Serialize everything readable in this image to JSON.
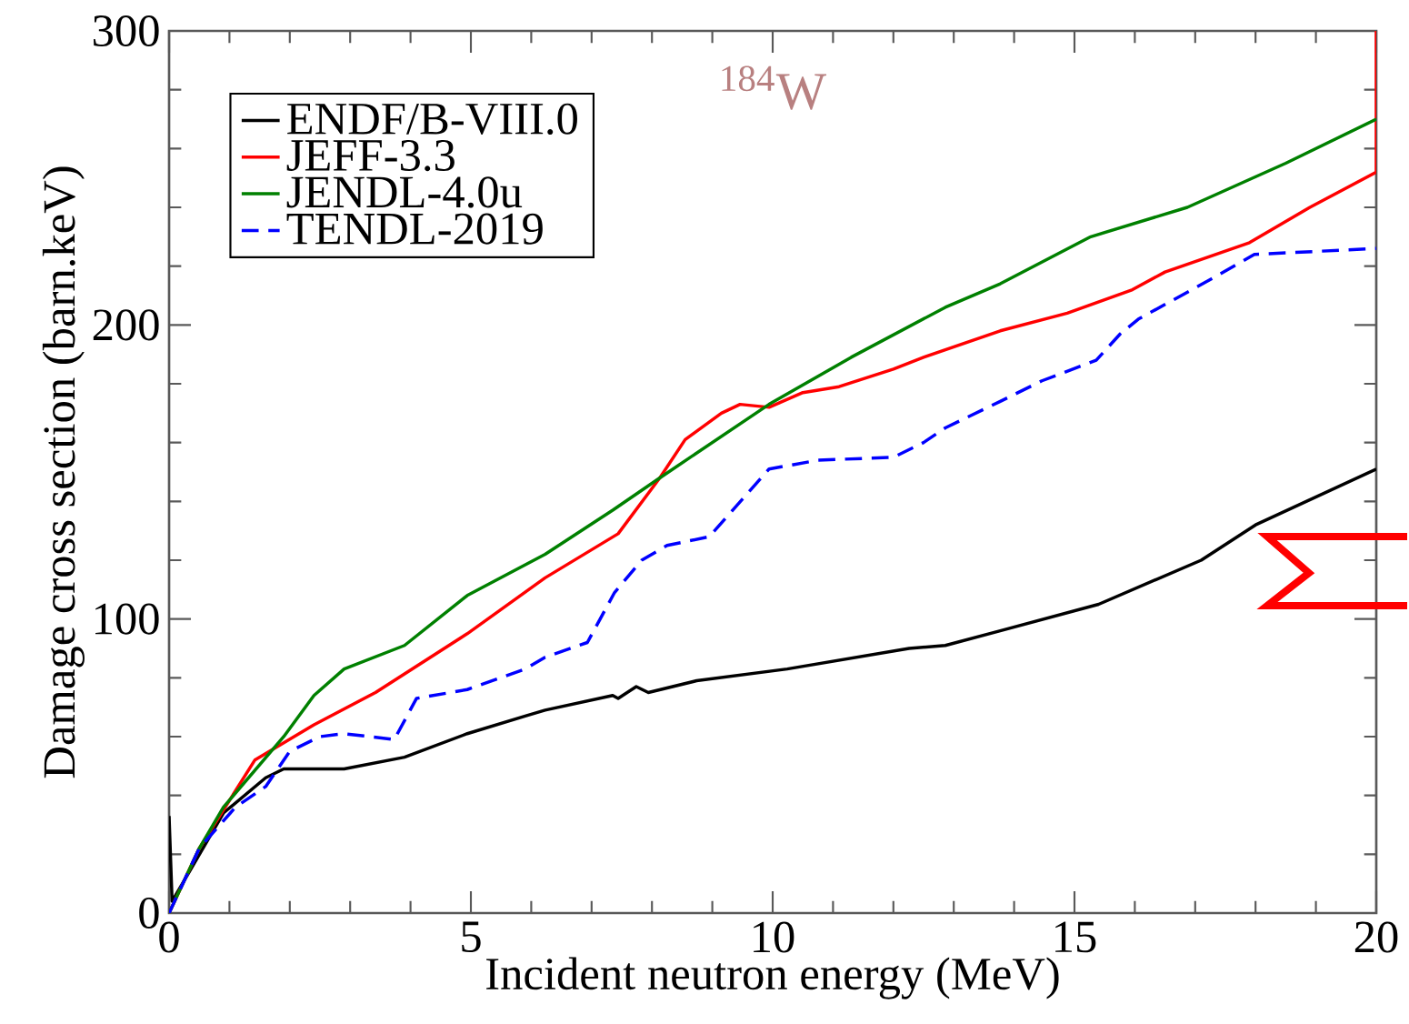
{
  "chart_data": {
    "type": "line",
    "xlabel": "Incident neutron energy (MeV)",
    "ylabel": "Damage cross section (barn.keV)",
    "annotations": [
      "$^{184}$W"
    ],
    "xlim": [
      0,
      20
    ],
    "ylim": [
      0,
      300
    ],
    "xticks": [
      0,
      5,
      10,
      15,
      20
    ],
    "yticks": [
      0,
      100,
      200,
      300
    ],
    "grid": false,
    "legend": "top left",
    "marker": "none",
    "series": [
      {
        "name": "ENDF/B-VIII.0",
        "color": "#000000",
        "line_style": "solid",
        "x": [
          0,
          0.05,
          0.9,
          1.6,
          1.9,
          2.9,
          3.9,
          4.94,
          5.9,
          6.23,
          7.35,
          7.44,
          7.74,
          7.94,
          8.74,
          10.24,
          12.26,
          12.86,
          13.77,
          15.4,
          17.1,
          18,
          20
        ],
        "values": [
          33,
          4,
          34,
          46,
          49,
          49,
          53,
          61,
          67,
          69,
          74,
          73,
          77,
          75,
          79,
          83,
          90,
          91,
          96,
          105,
          120,
          132,
          151
        ]
      },
      {
        "name": "JEFF-3.3",
        "color": "#ff0000",
        "line_style": "solid",
        "x": [
          0,
          0.5,
          1.42,
          2.4,
          3.42,
          4.94,
          6.23,
          7.44,
          8.13,
          8.55,
          9.15,
          9.46,
          9.94,
          10.5,
          11.1,
          12,
          12.5,
          13.77,
          14.88,
          15.96,
          16.5,
          17.9,
          18.9,
          20,
          20
        ],
        "values": [
          0,
          22,
          52,
          64,
          75,
          95,
          114,
          129,
          148,
          161,
          170,
          173,
          172,
          177,
          179,
          185,
          189,
          198,
          204,
          212,
          218,
          228,
          240,
          252,
          300
        ]
      },
      {
        "name": "JENDL-4.0u",
        "color": "#008000",
        "line_style": "solid",
        "x": [
          0,
          0.5,
          0.9,
          1.9,
          2.4,
          2.9,
          3.9,
          4.94,
          6.23,
          7.35,
          8.13,
          9.94,
          11.3,
          12.86,
          13.77,
          15.27,
          16.87,
          18.5,
          20
        ],
        "values": [
          0,
          22,
          36,
          60,
          74,
          83,
          91,
          108,
          122,
          137,
          148,
          173,
          189,
          206,
          214,
          230,
          240,
          255,
          270
        ]
      },
      {
        "name": "TENDL-2019",
        "color": "#0000ff",
        "line_style": "dashed",
        "x": [
          0,
          0.5,
          1.1,
          1.6,
          2.0,
          2.5,
          2.9,
          3.73,
          4.1,
          4.94,
          5.9,
          6.23,
          6.93,
          7.38,
          7.83,
          8.25,
          8.95,
          9.94,
          10.75,
          12,
          12.5,
          12.86,
          13.77,
          14.46,
          15.36,
          15.76,
          16.06,
          17.3,
          17.98,
          20
        ],
        "values": [
          0,
          22,
          36,
          43,
          55,
          60,
          61,
          59,
          73,
          76,
          83,
          87,
          92,
          109,
          120,
          125,
          128,
          151,
          154,
          155,
          160,
          165,
          174,
          181,
          188,
          197,
          202,
          216,
          224,
          226
        ]
      }
    ]
  }
}
